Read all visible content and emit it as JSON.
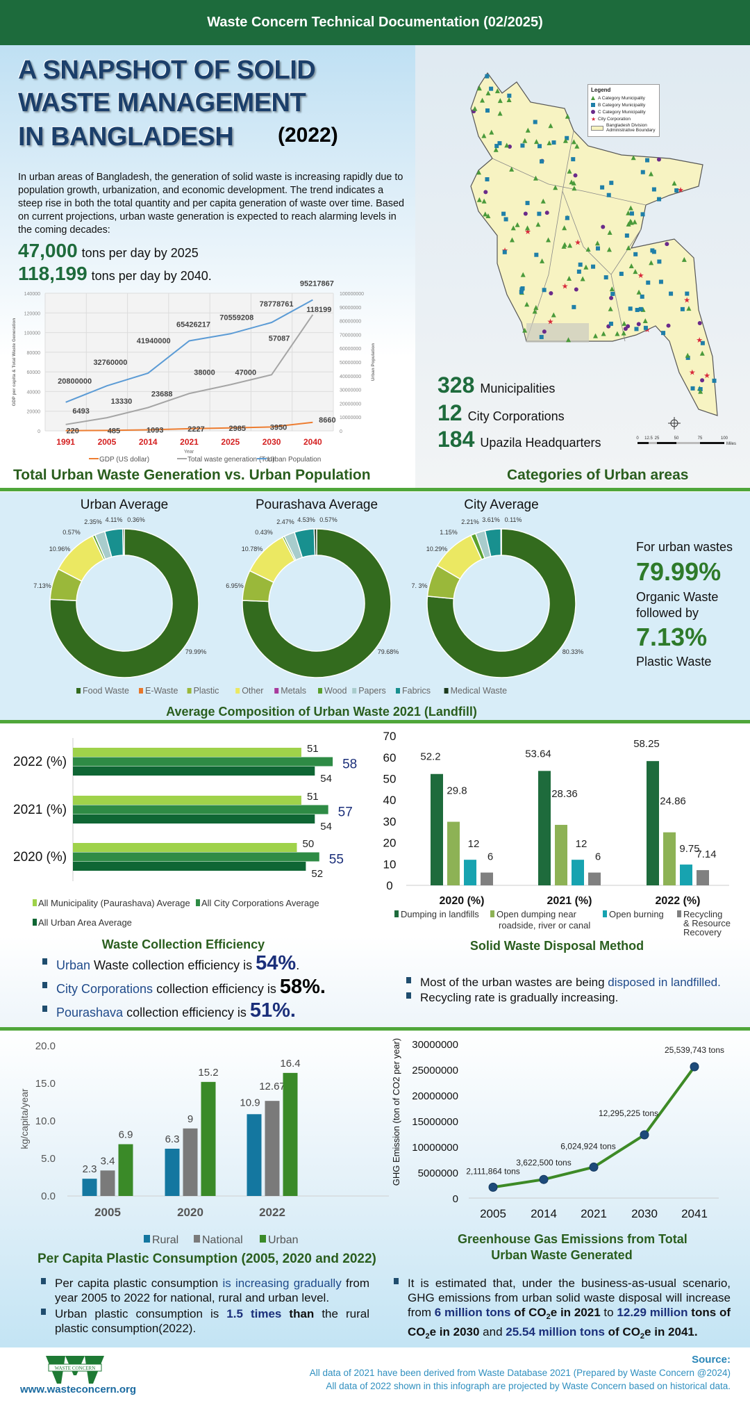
{
  "header": {
    "title": "Waste Concern Technical Documentation (02/2025)"
  },
  "hero": {
    "title_lines": [
      "A SNAPSHOT OF SOLID",
      "WASTE MANAGEMENT",
      "IN BANGLADESH"
    ],
    "year": "(2022)",
    "intro": "In urban areas of Bangladesh, the generation of solid waste is increasing rapidly due to population growth, urbanization, and economic development. The trend indicates a steep rise in both the total quantity and per capita generation of waste over time. Based on current projections, urban waste generation is expected to reach alarming levels in the coming decades:",
    "projections": [
      {
        "value": "47,000",
        "text": "tons per day by 2025"
      },
      {
        "value": "118,199",
        "text": "tons per day by 2040."
      }
    ]
  },
  "map": {
    "legend_title": "Legend",
    "legend_items": [
      "A Category Municipality",
      "B Category Municipality",
      "C Category Municipality",
      "City Corporation",
      "Bangladesh Division Administrative Boundary"
    ],
    "scale_labels": [
      "0",
      "12.5",
      "25",
      "50",
      "75",
      "100"
    ],
    "scale_unit": "Miles"
  },
  "stats": [
    {
      "value": "328",
      "label": "Municipalities"
    },
    {
      "value": "12",
      "label": "City Corporations"
    },
    {
      "value": "184",
      "label": "Upazila Headquarters"
    }
  ],
  "headings": {
    "waste_vs_pop": "Total Urban Waste Generation vs. Urban Population",
    "categories": "Categories of Urban areas",
    "composition": "Average Composition of Urban Waste 2021 (Landfill)",
    "collection": "Waste Collection Efficiency",
    "disposal": "Solid Waste Disposal Method",
    "plastic": "Per Capita Plastic Consumption (2005, 2020 and 2022)",
    "ghg": [
      "Greenhouse Gas Emissions from Total",
      "Urban Waste Generated"
    ]
  },
  "highlight": {
    "intro": "For urban wastes",
    "organic_value": "79.99%",
    "organic_label": "Organic Waste",
    "followed": "followed by",
    "plastic_value": "7.13%",
    "plastic_label": "Plastic Waste"
  },
  "collection_bullets": [
    [
      {
        "t": "Urban",
        "c": "blue"
      },
      {
        "t": " Waste collection efficiency is "
      },
      {
        "t": "54%",
        "c": "bignavy"
      },
      {
        "t": "."
      }
    ],
    [
      {
        "t": "City Corporations",
        "c": "blue"
      },
      {
        "t": " collection efficiency is "
      },
      {
        "t": "58%.",
        "c": "bigblack"
      }
    ],
    [
      {
        "t": "Pourashava",
        "c": "blue"
      },
      {
        "t": " collection efficiency is "
      },
      {
        "t": "51%.",
        "c": "bignavy"
      }
    ]
  ],
  "disposal_bullets": [
    [
      {
        "t": "Most of the urban wastes are being "
      },
      {
        "t": "disposed in landfilled.",
        "c": "blue"
      }
    ],
    [
      {
        "t": "Recycling rate is gradually increasing."
      }
    ]
  ],
  "plastic_bullets": [
    [
      {
        "t": "Per capita plastic consumption "
      },
      {
        "t": "is increasing gradually",
        "c": "blue"
      },
      {
        "t": " from year 2005 to 2022 for national, rural and urban level."
      }
    ],
    [
      {
        "t": "Urban plastic consumption is "
      },
      {
        "t": "1.5 times",
        "c": "bluebold"
      },
      {
        "t": " than",
        "c": "bold"
      },
      {
        "t": " the rural plastic consumption(2022)."
      }
    ]
  ],
  "ghg_bullets": [
    [
      {
        "t": "It is estimated that, under the business-as-usual scenario, GHG emissions from urban solid waste disposal will increase from "
      },
      {
        "t": "6 million tons",
        "c": "bluebold"
      },
      {
        "t": " of CO",
        "c": "bold"
      },
      {
        "t": "2",
        "c": "sub"
      },
      {
        "t": "e in 2021",
        "c": "bold"
      },
      {
        "t": " to "
      },
      {
        "t": "12.29 million",
        "c": "bluebold"
      },
      {
        "t": " tons of CO",
        "c": "bold"
      },
      {
        "t": "2",
        "c": "sub"
      },
      {
        "t": "e in 2030",
        "c": "bold"
      },
      {
        "t": " and "
      },
      {
        "t": "25.54 million tons",
        "c": "bluebold"
      },
      {
        "t": " of CO",
        "c": "bold"
      },
      {
        "t": "2",
        "c": "sub"
      },
      {
        "t": "e in 2041.",
        "c": "bold"
      }
    ]
  ],
  "footer": {
    "logo_text": "WASTE CONCERN",
    "url": "www.wasteconcern.org",
    "source_title": "Source:",
    "source_lines": [
      "All data of 2021 have been derived from Waste Database 2021 (Prepared by Waste Concern @2024)",
      "All data of 2022 shown in this infograph are projected by Waste Concern based on historical data."
    ]
  },
  "colors": {
    "brand_green": "#1d6b3c",
    "accent_line": "#4fa63a",
    "navy": "#1b2f7a"
  },
  "chart_data": [
    {
      "type": "line",
      "title": "Total Urban Waste Generation vs. Urban Population",
      "xlabel": "Year",
      "ylabel": "GDP per capita & Total Waste Generation",
      "y2label": "Urban Population",
      "categories": [
        "1991",
        "2005",
        "2014",
        "2021",
        "2025",
        "2030",
        "2040"
      ],
      "ylim": [
        0,
        140000
      ],
      "y2lim": [
        0,
        100000000
      ],
      "y_ticks": [
        "0",
        "20000",
        "40000",
        "60000",
        "80000",
        "100000",
        "120000",
        "140000"
      ],
      "y2_ticks": [
        "0",
        "10000000",
        "20000000",
        "30000000",
        "40000000",
        "50000000",
        "60000000",
        "70000000",
        "80000000",
        "90000000",
        "100000000"
      ],
      "series": [
        {
          "name": "GDP (US dollar)",
          "axis": "left",
          "color": "#ed7d31",
          "values": [
            220,
            485,
            1093,
            2227,
            2985,
            3950,
            8660
          ]
        },
        {
          "name": "Total waste generation (Ton)",
          "axis": "left",
          "color": "#a5a5a5",
          "values": [
            6493,
            13330,
            23688,
            38000,
            47000,
            57087,
            118199
          ]
        },
        {
          "name": "Urban Population",
          "axis": "right",
          "color": "#5b9bd5",
          "values": [
            20800000,
            32760000,
            41940000,
            65426217,
            70559208,
            78778761,
            95217867
          ]
        }
      ]
    },
    {
      "type": "pie",
      "title": "Urban Average",
      "slices": [
        {
          "name": "Food Waste",
          "value": 79.99,
          "label": "79.99%"
        },
        {
          "name": "Plastic",
          "value": 7.13,
          "label": "7.13%"
        },
        {
          "name": "Other",
          "value": 10.96,
          "label": "10.96%"
        },
        {
          "name": "Wood",
          "value": 0.57,
          "label": "0.57%"
        },
        {
          "name": "Papers",
          "value": 2.35,
          "label": "2.35%"
        },
        {
          "name": "Fabrics",
          "value": 4.11,
          "label": "4.11%"
        },
        {
          "name": "Medical Waste",
          "value": 0.36,
          "label": "0.36%"
        }
      ]
    },
    {
      "type": "pie",
      "title": "Pourashava Average",
      "slices": [
        {
          "name": "Food Waste",
          "value": 79.68,
          "label": "79.68%"
        },
        {
          "name": "Plastic",
          "value": 6.95,
          "label": "6.95%"
        },
        {
          "name": "Other",
          "value": 10.78,
          "label": "10.78%"
        },
        {
          "name": "Wood",
          "value": 0.43,
          "label": "0.43%"
        },
        {
          "name": "Papers",
          "value": 2.47,
          "label": "2.47%"
        },
        {
          "name": "Fabrics",
          "value": 4.53,
          "label": "4.53%"
        },
        {
          "name": "Medical Waste",
          "value": 0.57,
          "label": "0.57%"
        }
      ]
    },
    {
      "type": "pie",
      "title": "City Average",
      "slices": [
        {
          "name": "Food Waste",
          "value": 80.33,
          "label": "80.33%"
        },
        {
          "name": "Plastic",
          "value": 7.3,
          "label": "7. 3%"
        },
        {
          "name": "Other",
          "value": 10.29,
          "label": "10.29%"
        },
        {
          "name": "Wood",
          "value": 1.15,
          "label": "1.15%"
        },
        {
          "name": "Papers",
          "value": 2.21,
          "label": "2.21%"
        },
        {
          "name": "Fabrics",
          "value": 3.61,
          "label": "3.61%"
        },
        {
          "name": "Medical Waste",
          "value": 0.11,
          "label": "0.11%"
        }
      ]
    },
    {
      "type": "bar",
      "orientation": "horizontal",
      "title": "Waste Collection Efficiency",
      "categories": [
        "2022 (%)",
        "2021 (%)",
        "2020 (%)"
      ],
      "series": [
        {
          "name": "All Municipality (Paurashava) Average",
          "color": "#9fd24a",
          "values": [
            51,
            51,
            50
          ]
        },
        {
          "name": "All City Corporations Average",
          "color": "#2e8b45",
          "values": [
            58,
            57,
            55
          ]
        },
        {
          "name": "All Urban Area Average",
          "color": "#0f6634",
          "values": [
            54,
            54,
            52
          ]
        }
      ]
    },
    {
      "type": "bar",
      "title": "Solid Waste Disposal Method",
      "ylim": [
        0,
        70
      ],
      "y_ticks": [
        "0",
        "10",
        "20",
        "30",
        "40",
        "50",
        "60",
        "70"
      ],
      "categories": [
        "2020 (%)",
        "2021 (%)",
        "2022 (%)"
      ],
      "series": [
        {
          "name": "Dumping in landfills",
          "color": "#1e6b3c",
          "values": [
            52.2,
            53.64,
            58.25
          ]
        },
        {
          "name": "Open dumping near roadside, river or canal",
          "color": "#8db255",
          "values": [
            29.8,
            28.36,
            24.86
          ]
        },
        {
          "name": "Open burning",
          "color": "#17a3b0",
          "values": [
            12,
            12,
            9.75
          ]
        },
        {
          "name": "Recycling & Resource Recovery",
          "color": "#808080",
          "values": [
            6,
            6,
            7.14
          ]
        }
      ]
    },
    {
      "type": "bar",
      "title": "Per Capita Plastic Consumption (2005, 2020 and 2022)",
      "ylabel": "kg/capita/year",
      "ylim": [
        0,
        20
      ],
      "y_ticks": [
        "0.0",
        "5.0",
        "10.0",
        "15.0",
        "20.0"
      ],
      "categories": [
        "2005",
        "2020",
        "2022"
      ],
      "series": [
        {
          "name": "Rural",
          "color": "#1477a0",
          "values": [
            2.3,
            6.3,
            10.9
          ]
        },
        {
          "name": "National",
          "color": "#7a7a7a",
          "values": [
            3.4,
            9,
            12.67
          ]
        },
        {
          "name": "Urban",
          "color": "#3a8a28",
          "values": [
            6.9,
            15.2,
            16.4
          ]
        }
      ]
    },
    {
      "type": "line",
      "title": "Greenhouse Gas Emissions from Total Urban Waste Generated",
      "ylabel": "GHG Emission (ton of CO2 per year)",
      "ylim": [
        0,
        30000000
      ],
      "y_ticks": [
        "0",
        "5000000",
        "10000000",
        "15000000",
        "20000000",
        "25000000",
        "30000000"
      ],
      "categories": [
        "2005",
        "2014",
        "2021",
        "2030",
        "2041"
      ],
      "values": [
        2111864,
        3622500,
        6024924,
        12295225,
        25539743
      ],
      "labels": [
        "2,111,864 tons",
        "3,622,500 tons",
        "6,024,924 tons",
        "12,295,225 tons",
        "25,539,743 tons"
      ]
    }
  ]
}
